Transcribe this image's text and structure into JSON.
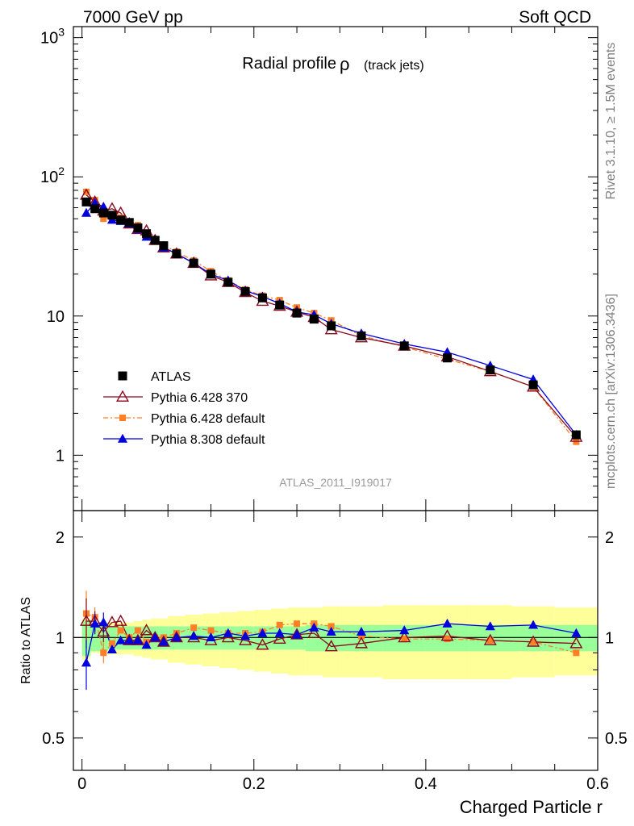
{
  "header": {
    "left": "7000 GeV pp",
    "right": "Soft QCD"
  },
  "side": {
    "top": "Rivet 3.1.10, ≥ 1.5M events",
    "bottom": "mcplots.cern.ch [arXiv:1306.3436]"
  },
  "chart_data": {
    "type": "line",
    "title": "Radial profile",
    "title_symbol": "ρ",
    "title_suffix": "(track jets)",
    "watermark": "ATLAS_2011_I919017",
    "xlabel": "Charged Particle r",
    "ylabel": "",
    "ratio_ylabel": "Ratio to ATLAS",
    "xlim": [
      -0.01,
      0.6
    ],
    "ylim": [
      0.4,
      1200
    ],
    "ylog": true,
    "ratio_ylim": [
      0.4,
      2.4
    ],
    "ratio_ylog": true,
    "x_ticks": [
      {
        "v": 0,
        "label": "0"
      },
      {
        "v": 0.2,
        "label": "0.2"
      },
      {
        "v": 0.4,
        "label": "0.4"
      },
      {
        "v": 0.6,
        "label": "0.6"
      }
    ],
    "y_ticks": [
      {
        "v": 1,
        "label": "1",
        "sup": ""
      },
      {
        "v": 10,
        "label": "10",
        "sup": ""
      },
      {
        "v": 100,
        "label": "10",
        "sup": "2"
      },
      {
        "v": 1000,
        "label": "10",
        "sup": "3"
      }
    ],
    "ratio_ticks": [
      {
        "v": 0.5,
        "label": "0.5"
      },
      {
        "v": 1,
        "label": "1"
      },
      {
        "v": 2,
        "label": "2"
      }
    ],
    "legend_position": "lower-left",
    "x": [
      0.005,
      0.015,
      0.025,
      0.035,
      0.045,
      0.055,
      0.065,
      0.075,
      0.085,
      0.095,
      0.11,
      0.13,
      0.15,
      0.17,
      0.19,
      0.21,
      0.23,
      0.25,
      0.27,
      0.29,
      0.325,
      0.375,
      0.425,
      0.475,
      0.525,
      0.575
    ],
    "bin_edges": [
      0,
      0.01,
      0.02,
      0.03,
      0.04,
      0.05,
      0.06,
      0.07,
      0.08,
      0.09,
      0.1,
      0.12,
      0.14,
      0.16,
      0.18,
      0.2,
      0.22,
      0.24,
      0.26,
      0.28,
      0.3,
      0.35,
      0.4,
      0.45,
      0.5,
      0.55,
      0.6
    ],
    "band_stat": [
      0.12,
      0.09,
      0.09,
      0.08,
      0.08,
      0.08,
      0.08,
      0.08,
      0.08,
      0.08,
      0.08,
      0.08,
      0.08,
      0.08,
      0.08,
      0.08,
      0.08,
      0.08,
      0.09,
      0.09,
      0.09,
      0.09,
      0.09,
      0.09,
      0.09,
      0.09
    ],
    "band_syst": [
      0.14,
      0.1,
      0.1,
      0.11,
      0.11,
      0.11,
      0.12,
      0.13,
      0.14,
      0.14,
      0.16,
      0.17,
      0.18,
      0.19,
      0.2,
      0.21,
      0.22,
      0.23,
      0.23,
      0.24,
      0.24,
      0.25,
      0.25,
      0.25,
      0.24,
      0.23
    ],
    "series": [
      {
        "name": "ATLAS",
        "color": "#000000",
        "marker": "square",
        "line": "none",
        "values": [
          66,
          59,
          55,
          53,
          49,
          47,
          43,
          39,
          35,
          32,
          28,
          24,
          20,
          17.5,
          15,
          13.5,
          12,
          10.5,
          9.5,
          8.5,
          7.2,
          6.1,
          5.0,
          4.1,
          3.2,
          1.4
        ],
        "ratio": [
          1,
          1,
          1,
          1,
          1,
          1,
          1,
          1,
          1,
          1,
          1,
          1,
          1,
          1,
          1,
          1,
          1,
          1,
          1,
          1,
          1,
          1,
          1,
          1,
          1,
          1
        ]
      },
      {
        "name": "Pythia 6.428 370",
        "color": "#8b0a1e",
        "marker": "triangle-open",
        "line": "solid",
        "values": [
          74,
          66,
          57,
          59,
          55,
          46,
          42,
          41,
          35,
          31,
          28,
          24,
          19.5,
          17.5,
          14.8,
          12.8,
          11.8,
          10.7,
          9.8,
          8.0,
          7.0,
          6.1,
          5.1,
          4.0,
          3.1,
          1.35
        ],
        "ratio": [
          1.12,
          1.12,
          1.04,
          1.11,
          1.12,
          0.98,
          0.98,
          1.05,
          1.0,
          0.97,
          1.0,
          1.0,
          0.98,
          1.0,
          0.98,
          0.95,
          0.99,
          1.02,
          1.03,
          0.94,
          0.96,
          1.0,
          1.01,
          0.98,
          0.97,
          0.96
        ]
      },
      {
        "name": "Pythia 6.428 default",
        "color": "#ff7f27",
        "marker": "square",
        "line": "dashdot",
        "values": [
          78,
          68,
          50,
          51,
          51,
          47,
          45,
          38,
          35,
          32,
          29,
          25,
          21,
          18,
          15.5,
          14,
          13,
          11.5,
          10.5,
          9.3,
          7.2,
          6.0,
          4.9,
          4.0,
          3.1,
          1.25
        ],
        "ratio": [
          1.18,
          1.15,
          0.9,
          0.96,
          1.05,
          1.0,
          1.05,
          0.97,
          1.0,
          1.0,
          1.03,
          1.07,
          1.05,
          1.03,
          1.03,
          1.04,
          1.09,
          1.1,
          1.1,
          1.08,
          1.01,
          0.99,
          0.99,
          0.98,
          0.97,
          0.9
        ]
      },
      {
        "name": "Pythia 8.308 default",
        "color": "#0000dd",
        "marker": "triangle",
        "line": "solid",
        "values": [
          55,
          65,
          61,
          49,
          48,
          46,
          42,
          37,
          35,
          31,
          28,
          24,
          20,
          18,
          15.2,
          13.8,
          12.3,
          10.7,
          10.2,
          8.8,
          7.5,
          6.3,
          5.5,
          4.4,
          3.5,
          1.4
        ],
        "ratio": [
          0.84,
          1.1,
          1.11,
          0.92,
          0.98,
          0.98,
          0.98,
          0.95,
          1.0,
          0.97,
          1.0,
          1.01,
          1.0,
          1.03,
          1.01,
          1.03,
          1.03,
          1.02,
          1.07,
          1.04,
          1.04,
          1.05,
          1.1,
          1.08,
          1.09,
          1.03
        ]
      }
    ]
  }
}
